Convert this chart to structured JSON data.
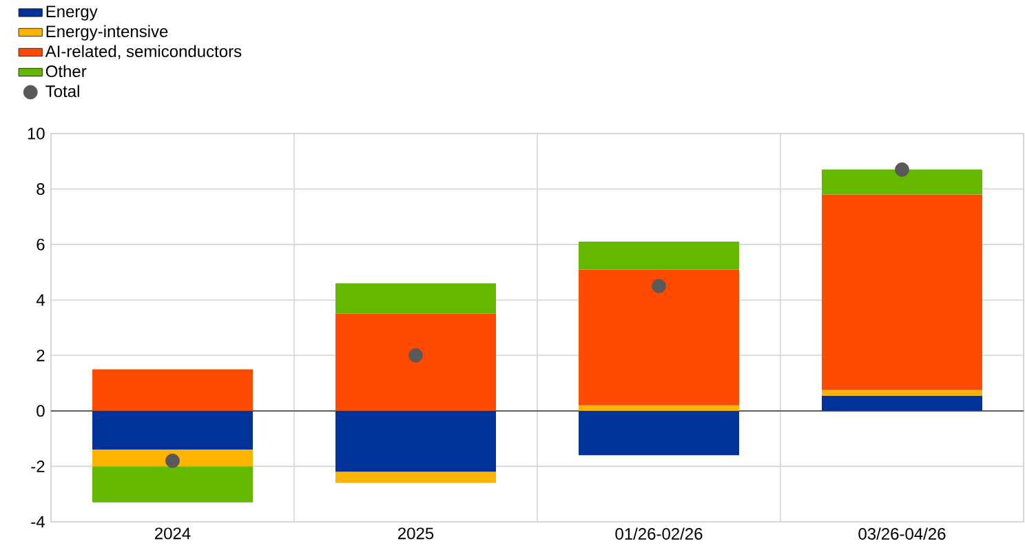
{
  "chart_data": {
    "type": "bar",
    "stacked": true,
    "categories": [
      "2024",
      "2025",
      "01/26-02/26",
      "03/26-04/26"
    ],
    "series": [
      {
        "name": "Energy",
        "color": "#003299",
        "values": [
          -1.4,
          -2.2,
          -1.6,
          0.55
        ]
      },
      {
        "name": "Energy-intensive",
        "color": "#ffb400",
        "values": [
          -0.6,
          -0.4,
          0.2,
          0.2
        ]
      },
      {
        "name": "AI-related, semiconductors",
        "color": "#ff4b00",
        "values": [
          1.5,
          3.5,
          4.9,
          7.05
        ]
      },
      {
        "name": "Other",
        "color": "#65b800",
        "values": [
          -1.3,
          1.1,
          1.0,
          0.9
        ]
      },
      {
        "name": "Total",
        "type": "scatter",
        "marker": "circle",
        "color": "#595959",
        "values": [
          -1.8,
          2.0,
          4.5,
          8.7
        ]
      }
    ],
    "ylim": [
      -4,
      10
    ],
    "yticks": [
      -4,
      -2,
      0,
      2,
      4,
      6,
      8,
      10
    ],
    "grid": true,
    "legend": "top left"
  }
}
